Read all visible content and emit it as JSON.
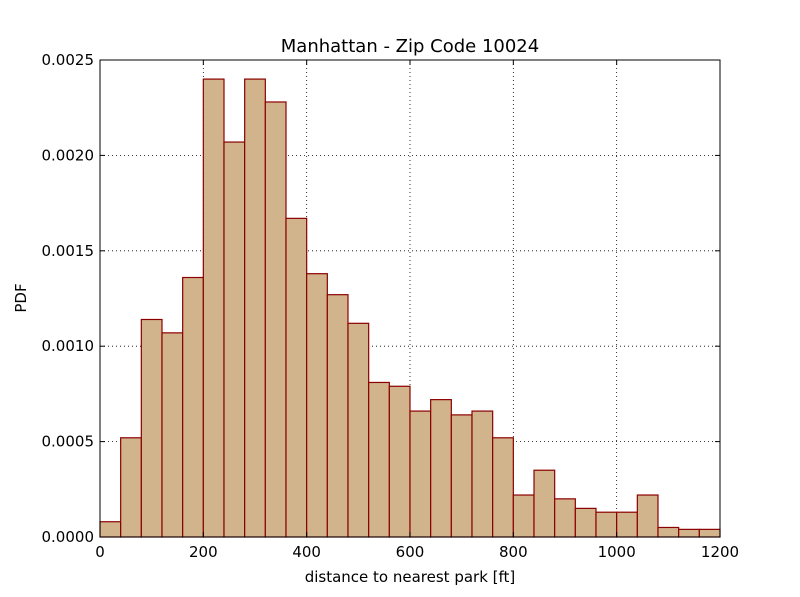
{
  "chart_data": {
    "type": "bar",
    "title": "Manhattan - Zip Code 10024",
    "xlabel": "distance to nearest park [ft]",
    "ylabel": "PDF",
    "xlim": [
      0,
      1200
    ],
    "ylim": [
      0,
      0.0025
    ],
    "x_ticks": [
      "0",
      "200",
      "400",
      "600",
      "800",
      "1000",
      "1200"
    ],
    "y_ticks": [
      "0.0000",
      "0.0005",
      "0.0010",
      "0.0015",
      "0.0020",
      "0.0025"
    ],
    "x_tick_values": [
      0,
      200,
      400,
      600,
      800,
      1000,
      1200
    ],
    "y_tick_values": [
      0,
      0.0005,
      0.001,
      0.0015,
      0.002,
      0.0025
    ],
    "grid": true,
    "bin_edges": [
      0,
      40,
      80,
      120,
      160,
      200,
      240,
      280,
      320,
      360,
      400,
      440,
      480,
      520,
      560,
      600,
      640,
      680,
      720,
      760,
      800,
      840,
      880,
      920,
      960,
      1000,
      1040,
      1080,
      1120,
      1160,
      1200
    ],
    "values": [
      8e-05,
      0.00052,
      0.00114,
      0.00107,
      0.00136,
      0.0024,
      0.00207,
      0.0024,
      0.00228,
      0.00167,
      0.00138,
      0.00127,
      0.00112,
      0.00081,
      0.00079,
      0.00066,
      0.00072,
      0.00064,
      0.00066,
      0.00052,
      0.00022,
      0.00035,
      0.0002,
      0.00015,
      0.00013,
      0.00013,
      0.00022,
      5e-05,
      4e-05,
      4e-05
    ],
    "bar_color": "#d2b48c",
    "edge_color": "#8b0000"
  }
}
